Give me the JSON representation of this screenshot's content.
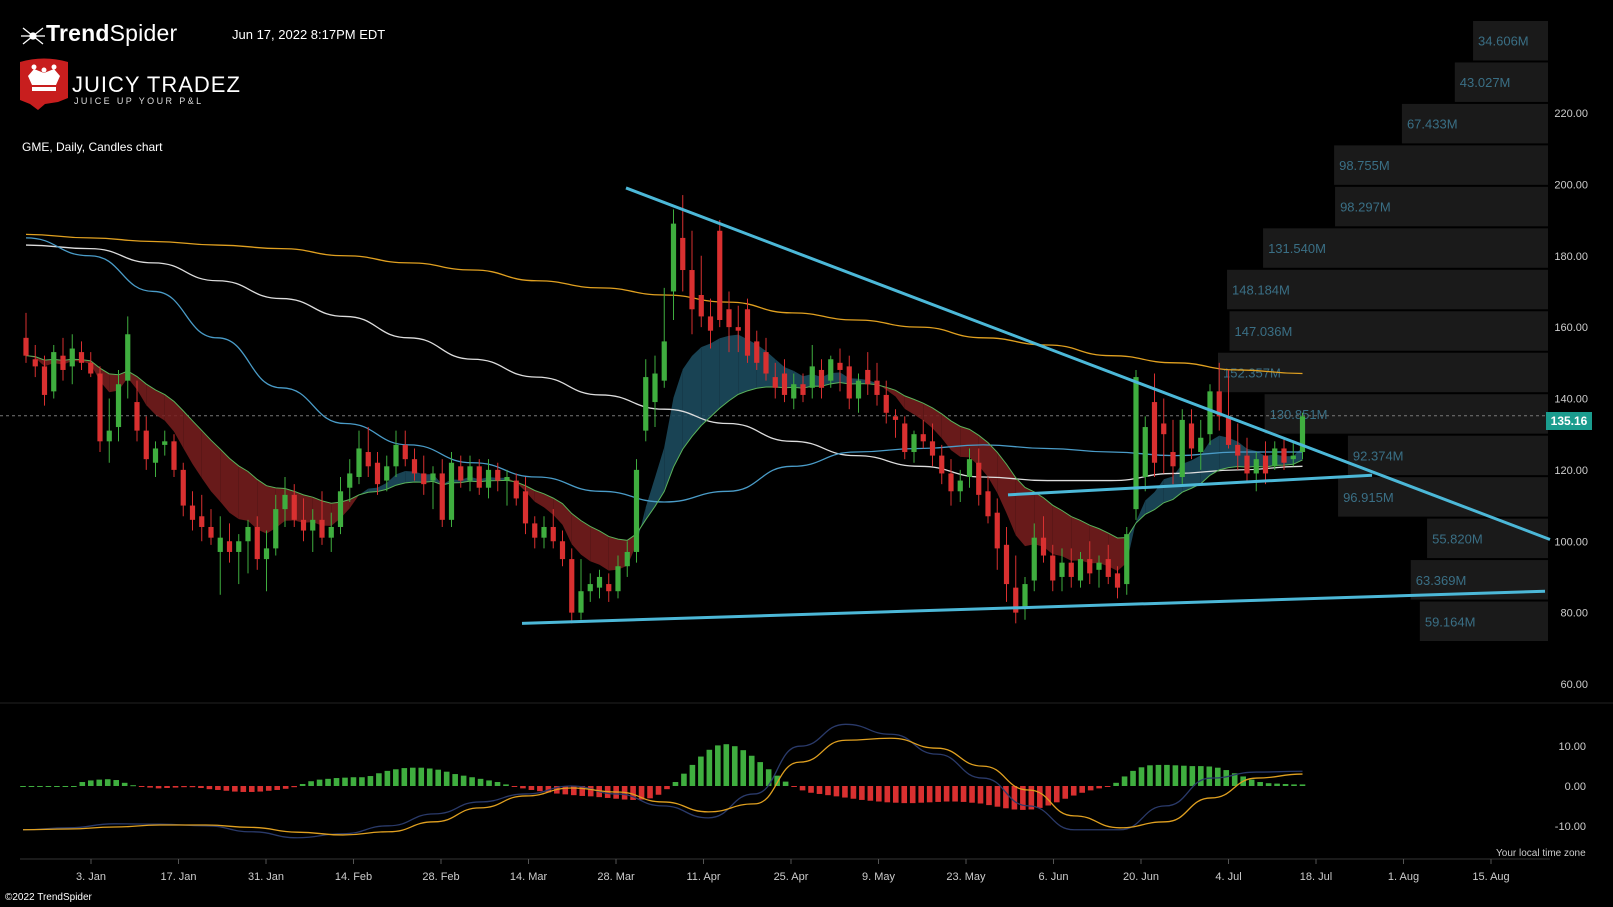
{
  "header": {
    "brand_bold": "Trend",
    "brand_light": "Spider",
    "datestamp": "Jun 17, 2022 8:17PM EDT",
    "symbol_line": "GME, Daily, Candles chart",
    "watermark_title": "JUICY TRADEZ",
    "watermark_subtitle": "JUICE UP YOUR P&L",
    "copyright": "©2022 TrendSpider",
    "timezone_note": "Your local time zone",
    "current_price_label": "135.16"
  },
  "colors": {
    "background": "#000000",
    "up_candle": "#3fae3f",
    "down_candle": "#d93030",
    "trendline": "#4cb8d8",
    "ma_orange": "#e0a020",
    "ma_white": "#dddddd",
    "ma_blue": "#4a9cc8",
    "ma_green": "#5bb35b",
    "ribbon_bear": "#7a1e1e",
    "ribbon_bull": "#1d4f63",
    "volume_profile_bg": "#1a1a1a",
    "volume_profile_text": "#3a6f85",
    "price_tag": "#1a9c8e",
    "axis_text": "#cccccc",
    "macd_signal": "#e0a020",
    "macd_line": "#2a3a6a"
  },
  "chart_data": {
    "type": "candlestick",
    "symbol": "GME",
    "timeframe": "Daily",
    "last_price": 135.16,
    "ylim": [
      55,
      225
    ],
    "y_ticks": [
      60,
      80,
      100,
      120,
      140,
      160,
      180,
      200,
      220
    ],
    "y_tick_labels": [
      "60.00",
      "80.00",
      "100.00",
      "120.00",
      "140.00",
      "160.00",
      "180.00",
      "200.00",
      "220.00"
    ],
    "x_ticks": [
      "3. Jan",
      "17. Jan",
      "31. Jan",
      "14. Feb",
      "28. Feb",
      "14. Mar",
      "28. Mar",
      "11. Apr",
      "25. Apr",
      "9. May",
      "23. May",
      "6. Jun",
      "20. Jun",
      "4. Jul",
      "18. Jul",
      "1. Aug",
      "15. Aug"
    ],
    "candles": [
      {
        "o": 157,
        "h": 164,
        "l": 150,
        "c": 152
      },
      {
        "o": 151,
        "h": 155,
        "l": 146,
        "c": 149
      },
      {
        "o": 149,
        "h": 152,
        "l": 138,
        "c": 141
      },
      {
        "o": 142,
        "h": 155,
        "l": 140,
        "c": 153
      },
      {
        "o": 152,
        "h": 157,
        "l": 145,
        "c": 148
      },
      {
        "o": 149,
        "h": 158,
        "l": 144,
        "c": 154
      },
      {
        "o": 153,
        "h": 156,
        "l": 148,
        "c": 150
      },
      {
        "o": 150,
        "h": 153,
        "l": 146,
        "c": 147
      },
      {
        "o": 147,
        "h": 149,
        "l": 125,
        "c": 128
      },
      {
        "o": 128,
        "h": 140,
        "l": 122,
        "c": 131
      },
      {
        "o": 132,
        "h": 148,
        "l": 128,
        "c": 144
      },
      {
        "o": 145,
        "h": 163,
        "l": 140,
        "c": 158
      },
      {
        "o": 139,
        "h": 145,
        "l": 128,
        "c": 131
      },
      {
        "o": 131,
        "h": 135,
        "l": 120,
        "c": 123
      },
      {
        "o": 122,
        "h": 128,
        "l": 118,
        "c": 126
      },
      {
        "o": 127,
        "h": 131,
        "l": 124,
        "c": 128
      },
      {
        "o": 128,
        "h": 130,
        "l": 118,
        "c": 120
      },
      {
        "o": 120,
        "h": 122,
        "l": 107,
        "c": 110
      },
      {
        "o": 110,
        "h": 114,
        "l": 103,
        "c": 106
      },
      {
        "o": 107,
        "h": 113,
        "l": 100,
        "c": 104
      },
      {
        "o": 104,
        "h": 109,
        "l": 99,
        "c": 101
      },
      {
        "o": 97,
        "h": 107,
        "l": 85,
        "c": 101
      },
      {
        "o": 100,
        "h": 105,
        "l": 94,
        "c": 97
      },
      {
        "o": 97,
        "h": 102,
        "l": 88,
        "c": 100
      },
      {
        "o": 100,
        "h": 106,
        "l": 91,
        "c": 104
      },
      {
        "o": 104,
        "h": 107,
        "l": 92,
        "c": 95
      },
      {
        "o": 95,
        "h": 103,
        "l": 86,
        "c": 98
      },
      {
        "o": 98,
        "h": 113,
        "l": 96,
        "c": 109
      },
      {
        "o": 109,
        "h": 118,
        "l": 104,
        "c": 113
      },
      {
        "o": 113,
        "h": 116,
        "l": 104,
        "c": 106
      },
      {
        "o": 106,
        "h": 112,
        "l": 100,
        "c": 103
      },
      {
        "o": 103,
        "h": 109,
        "l": 97,
        "c": 106
      },
      {
        "o": 106,
        "h": 114,
        "l": 99,
        "c": 101
      },
      {
        "o": 101,
        "h": 108,
        "l": 97,
        "c": 104
      },
      {
        "o": 104,
        "h": 118,
        "l": 102,
        "c": 114
      },
      {
        "o": 115,
        "h": 123,
        "l": 111,
        "c": 119
      },
      {
        "o": 118,
        "h": 131,
        "l": 116,
        "c": 126
      },
      {
        "o": 125,
        "h": 132,
        "l": 118,
        "c": 121
      },
      {
        "o": 122,
        "h": 125,
        "l": 113,
        "c": 116
      },
      {
        "o": 117,
        "h": 124,
        "l": 114,
        "c": 121
      },
      {
        "o": 121,
        "h": 131,
        "l": 118,
        "c": 127
      },
      {
        "o": 127,
        "h": 131,
        "l": 121,
        "c": 123
      },
      {
        "o": 123,
        "h": 126,
        "l": 117,
        "c": 119
      },
      {
        "o": 119,
        "h": 124,
        "l": 113,
        "c": 116
      },
      {
        "o": 117,
        "h": 121,
        "l": 109,
        "c": 119
      },
      {
        "o": 119,
        "h": 123,
        "l": 104,
        "c": 106
      },
      {
        "o": 106,
        "h": 125,
        "l": 104,
        "c": 122
      },
      {
        "o": 121,
        "h": 124,
        "l": 115,
        "c": 117
      },
      {
        "o": 117,
        "h": 124,
        "l": 114,
        "c": 121
      },
      {
        "o": 121,
        "h": 123,
        "l": 113,
        "c": 115
      },
      {
        "o": 115,
        "h": 123,
        "l": 112,
        "c": 120
      },
      {
        "o": 120,
        "h": 122,
        "l": 114,
        "c": 117
      },
      {
        "o": 117,
        "h": 120,
        "l": 110,
        "c": 118
      },
      {
        "o": 117,
        "h": 119,
        "l": 110,
        "c": 112
      },
      {
        "o": 114,
        "h": 118,
        "l": 102,
        "c": 105
      },
      {
        "o": 105,
        "h": 107,
        "l": 98,
        "c": 101
      },
      {
        "o": 101,
        "h": 107,
        "l": 98,
        "c": 104
      },
      {
        "o": 104,
        "h": 109,
        "l": 98,
        "c": 100
      },
      {
        "o": 100,
        "h": 103,
        "l": 93,
        "c": 95
      },
      {
        "o": 95,
        "h": 98,
        "l": 77,
        "c": 80
      },
      {
        "o": 80,
        "h": 95,
        "l": 78,
        "c": 86
      },
      {
        "o": 86,
        "h": 91,
        "l": 83,
        "c": 88
      },
      {
        "o": 87,
        "h": 92,
        "l": 84,
        "c": 90
      },
      {
        "o": 88,
        "h": 91,
        "l": 83,
        "c": 86
      },
      {
        "o": 86,
        "h": 96,
        "l": 84,
        "c": 93
      },
      {
        "o": 93,
        "h": 100,
        "l": 90,
        "c": 97
      },
      {
        "o": 97,
        "h": 123,
        "l": 94,
        "c": 120
      },
      {
        "o": 131,
        "h": 151,
        "l": 128,
        "c": 146
      },
      {
        "o": 139,
        "h": 152,
        "l": 132,
        "c": 147
      },
      {
        "o": 145,
        "h": 171,
        "l": 143,
        "c": 156
      },
      {
        "o": 170,
        "h": 193,
        "l": 162,
        "c": 189
      },
      {
        "o": 185,
        "h": 197,
        "l": 170,
        "c": 176
      },
      {
        "o": 176,
        "h": 187,
        "l": 158,
        "c": 165
      },
      {
        "o": 169,
        "h": 180,
        "l": 160,
        "c": 163
      },
      {
        "o": 163,
        "h": 168,
        "l": 154,
        "c": 159
      },
      {
        "o": 187,
        "h": 190,
        "l": 160,
        "c": 162
      },
      {
        "o": 165,
        "h": 170,
        "l": 153,
        "c": 160
      },
      {
        "o": 160,
        "h": 166,
        "l": 153,
        "c": 159
      },
      {
        "o": 165,
        "h": 168,
        "l": 150,
        "c": 152
      },
      {
        "o": 156,
        "h": 159,
        "l": 148,
        "c": 150
      },
      {
        "o": 153,
        "h": 157,
        "l": 145,
        "c": 147
      },
      {
        "o": 146,
        "h": 150,
        "l": 140,
        "c": 143
      },
      {
        "o": 147,
        "h": 151,
        "l": 139,
        "c": 141
      },
      {
        "o": 140,
        "h": 147,
        "l": 137,
        "c": 144
      },
      {
        "o": 144,
        "h": 147,
        "l": 139,
        "c": 141
      },
      {
        "o": 143,
        "h": 155,
        "l": 140,
        "c": 149
      },
      {
        "o": 148,
        "h": 151,
        "l": 140,
        "c": 143
      },
      {
        "o": 145,
        "h": 152,
        "l": 143,
        "c": 151
      },
      {
        "o": 150,
        "h": 154,
        "l": 142,
        "c": 148
      },
      {
        "o": 149,
        "h": 152,
        "l": 137,
        "c": 140
      },
      {
        "o": 140,
        "h": 147,
        "l": 136,
        "c": 145
      },
      {
        "o": 148,
        "h": 153,
        "l": 141,
        "c": 144
      },
      {
        "o": 145,
        "h": 150,
        "l": 138,
        "c": 141
      },
      {
        "o": 141,
        "h": 145,
        "l": 133,
        "c": 136
      },
      {
        "o": 135,
        "h": 137,
        "l": 129,
        "c": 134
      },
      {
        "o": 133,
        "h": 135,
        "l": 123,
        "c": 125
      },
      {
        "o": 125,
        "h": 131,
        "l": 122,
        "c": 130
      },
      {
        "o": 130,
        "h": 134,
        "l": 126,
        "c": 128
      },
      {
        "o": 128,
        "h": 133,
        "l": 121,
        "c": 124
      },
      {
        "o": 124,
        "h": 127,
        "l": 116,
        "c": 119
      },
      {
        "o": 119,
        "h": 123,
        "l": 110,
        "c": 114
      },
      {
        "o": 114,
        "h": 120,
        "l": 111,
        "c": 117
      },
      {
        "o": 118,
        "h": 126,
        "l": 115,
        "c": 123
      },
      {
        "o": 122,
        "h": 126,
        "l": 110,
        "c": 113
      },
      {
        "o": 114,
        "h": 118,
        "l": 105,
        "c": 107
      },
      {
        "o": 108,
        "h": 112,
        "l": 92,
        "c": 98
      },
      {
        "o": 99,
        "h": 104,
        "l": 83,
        "c": 88
      },
      {
        "o": 87,
        "h": 96,
        "l": 77,
        "c": 80
      },
      {
        "o": 81,
        "h": 90,
        "l": 78,
        "c": 88
      },
      {
        "o": 89,
        "h": 105,
        "l": 86,
        "c": 101
      },
      {
        "o": 101,
        "h": 107,
        "l": 94,
        "c": 96
      },
      {
        "o": 96,
        "h": 99,
        "l": 86,
        "c": 89
      },
      {
        "o": 90,
        "h": 98,
        "l": 86,
        "c": 94
      },
      {
        "o": 94,
        "h": 98,
        "l": 87,
        "c": 90
      },
      {
        "o": 89,
        "h": 97,
        "l": 87,
        "c": 95
      },
      {
        "o": 95,
        "h": 100,
        "l": 88,
        "c": 91
      },
      {
        "o": 92,
        "h": 96,
        "l": 87,
        "c": 94
      },
      {
        "o": 95,
        "h": 99,
        "l": 88,
        "c": 90
      },
      {
        "o": 91,
        "h": 93,
        "l": 84,
        "c": 87
      },
      {
        "o": 88,
        "h": 104,
        "l": 85,
        "c": 102
      },
      {
        "o": 109,
        "h": 148,
        "l": 106,
        "c": 146
      },
      {
        "o": 118,
        "h": 135,
        "l": 114,
        "c": 132
      },
      {
        "o": 139,
        "h": 147,
        "l": 118,
        "c": 122
      },
      {
        "o": 133,
        "h": 140,
        "l": 119,
        "c": 130
      },
      {
        "o": 125,
        "h": 134,
        "l": 116,
        "c": 121
      },
      {
        "o": 118,
        "h": 137,
        "l": 116,
        "c": 134
      },
      {
        "o": 133,
        "h": 137,
        "l": 123,
        "c": 126
      },
      {
        "o": 125,
        "h": 134,
        "l": 120,
        "c": 129
      },
      {
        "o": 130,
        "h": 144,
        "l": 127,
        "c": 142
      },
      {
        "o": 142,
        "h": 150,
        "l": 131,
        "c": 135
      },
      {
        "o": 135,
        "h": 148,
        "l": 126,
        "c": 127
      },
      {
        "o": 127,
        "h": 133,
        "l": 120,
        "c": 124
      },
      {
        "o": 124,
        "h": 129,
        "l": 117,
        "c": 119
      },
      {
        "o": 119,
        "h": 125,
        "l": 114,
        "c": 123
      },
      {
        "o": 124,
        "h": 128,
        "l": 116,
        "c": 119
      },
      {
        "o": 121,
        "h": 128,
        "l": 120,
        "c": 126
      },
      {
        "o": 126,
        "h": 129,
        "l": 120,
        "c": 122
      },
      {
        "o": 123,
        "h": 128,
        "l": 121,
        "c": 124
      },
      {
        "o": 125,
        "h": 136,
        "l": 123,
        "c": 135
      }
    ],
    "series": [
      {
        "name": "Moving average (orange)",
        "values": [
          186,
          185,
          184,
          183,
          182,
          180,
          178,
          176,
          173,
          171,
          169,
          167,
          164,
          162,
          160,
          157,
          155,
          152,
          150,
          148,
          147
        ]
      },
      {
        "name": "Moving average (white)",
        "values": [
          183,
          182,
          178,
          173,
          168,
          163,
          157,
          151,
          146,
          141,
          137,
          133,
          128,
          124,
          121,
          118,
          117,
          117,
          119,
          120,
          121
        ]
      },
      {
        "name": "Moving average (blue)",
        "values": [
          185,
          180,
          170,
          157,
          143,
          133,
          127,
          122,
          118,
          114,
          111,
          114,
          121,
          125,
          126,
          127,
          126,
          125,
          124,
          125,
          125
        ]
      }
    ],
    "volume_profile": {
      "labels": [
        "34.606M",
        "43.027M",
        "67.433M",
        "98.755M",
        "98.297M",
        "131.540M",
        "148.184M",
        "147.036M",
        "152.357M",
        "130.851M",
        "92.374M",
        "96.915M",
        "55.820M",
        "63.369M",
        "59.164M"
      ],
      "values": [
        34.606,
        43.027,
        67.433,
        98.755,
        98.297,
        131.54,
        148.184,
        147.036,
        152.357,
        130.851,
        92.374,
        96.915,
        55.82,
        63.369,
        59.164
      ]
    },
    "macd": {
      "ylim": [
        -14,
        14
      ],
      "y_ticks": [
        -10,
        0,
        10
      ],
      "y_tick_labels": [
        "-10.00",
        "0.00",
        "10.00"
      ],
      "histogram": [
        0,
        0,
        0,
        0,
        0,
        0,
        0,
        1,
        1.4,
        1.6,
        1.7,
        1.5,
        0.8,
        0.2,
        -0.2,
        -0.4,
        -0.6,
        -0.5,
        -0.4,
        -0.3,
        -0.3,
        -0.5,
        -0.8,
        -1,
        -1.2,
        -1.4,
        -1.5,
        -1.5,
        -1.4,
        -1.2,
        -1,
        -0.7,
        -0.3,
        0.5,
        1.2,
        1.6,
        1.8,
        2,
        2.1,
        2.2,
        2.2,
        2.5,
        3.2,
        3.8,
        4.2,
        4.5,
        4.6,
        4.6,
        4.4,
        4.1,
        3.6,
        3,
        2.6,
        2.2,
        1.8,
        1.4,
        1,
        0.4,
        -0.2,
        -0.6,
        -1,
        -1.3,
        -1.6,
        -1.9,
        -2.1,
        -2.3,
        -2.5,
        -2.6,
        -2.8,
        -3,
        -3.2,
        -3.4,
        -3.5,
        -3.4,
        -3.1,
        -2.2,
        -0.8,
        1,
        3.1,
        5.3,
        7.4,
        9.1,
        10.2,
        10.5,
        10,
        9,
        7.6,
        6,
        4.2,
        2.6,
        1.1,
        -0.2,
        -1.1,
        -1.7,
        -2,
        -2.3,
        -2.6,
        -2.9,
        -3.2,
        -3.5,
        -3.7,
        -3.9,
        -4.1,
        -4.2,
        -4.3,
        -4.3,
        -4.2,
        -4.1,
        -4,
        -3.9,
        -3.9,
        -4,
        -4.2,
        -4.4,
        -4.8,
        -5.2,
        -5.6,
        -5.9,
        -6,
        -5.9,
        -5.5,
        -4.9,
        -4.1,
        -3.2,
        -2.4,
        -1.7,
        -1.1,
        -0.6,
        -0.2,
        0.8,
        2.4,
        3.8,
        4.7,
        5.2,
        5.3,
        5.3,
        5.2,
        5.1,
        5,
        5,
        4.9,
        4.6,
        4,
        3.2,
        2.4,
        1.6,
        1,
        0.7,
        0.6,
        0.5,
        0.4,
        0.4
      ],
      "macd_line": [
        -11,
        -10.5,
        -9.5,
        -9.6,
        -10,
        -11.5,
        -13,
        -12,
        -10,
        -7,
        -4,
        -2,
        0,
        -2,
        -5,
        -8,
        -2,
        10,
        15.5,
        13,
        8,
        2,
        -5,
        -11,
        -11,
        -5,
        2,
        3.5,
        3.7
      ],
      "signal_line": [
        -11,
        -10.8,
        -10.3,
        -9.8,
        -9.8,
        -10.4,
        -11.6,
        -12.3,
        -11.5,
        -9,
        -5.5,
        -2.5,
        -0.5,
        -1.5,
        -4,
        -6.5,
        -4.5,
        6,
        11.5,
        12,
        9.5,
        5,
        -1,
        -7.5,
        -10.5,
        -9,
        -3,
        2,
        3
      ]
    }
  }
}
